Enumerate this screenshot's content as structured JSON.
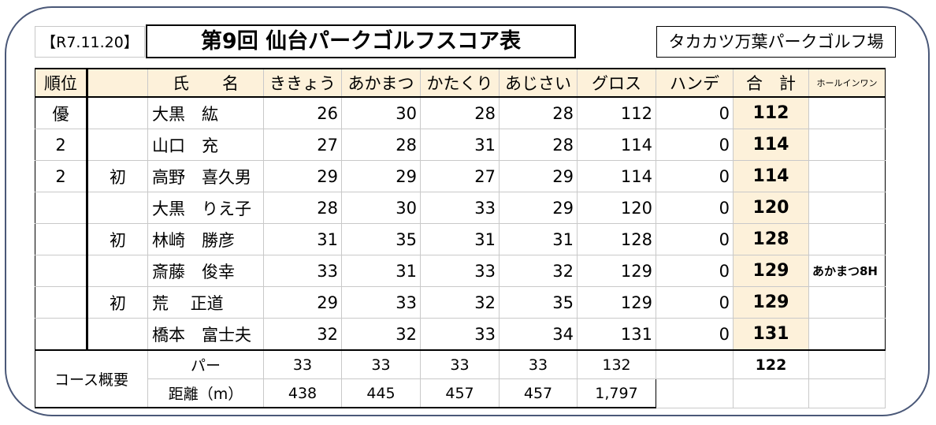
{
  "header": {
    "date": "【R7.11.20】",
    "title": "第9回 仙台パークゴルフスコア表",
    "venue": "タカカツ万葉パークゴルフ場"
  },
  "columns": {
    "rank": "順位",
    "mark": "",
    "name": "氏　　名",
    "courses": [
      "ききょう",
      "あかまつ",
      "かたくり",
      "あじさい"
    ],
    "gross": "グロス",
    "handicap": "ハンデ",
    "total": "合　計",
    "hole_in_one": "ホールインワン"
  },
  "rows": [
    {
      "rank": "優",
      "mark": "",
      "name": "大黒　紘",
      "scores": [
        "26",
        "30",
        "28",
        "28"
      ],
      "gross": "112",
      "handicap": "0",
      "total": "112",
      "hio": ""
    },
    {
      "rank": "2",
      "mark": "",
      "name": "山口　充",
      "scores": [
        "27",
        "28",
        "31",
        "28"
      ],
      "gross": "114",
      "handicap": "0",
      "total": "114",
      "hio": ""
    },
    {
      "rank": "2",
      "mark": "初",
      "name": "高野　喜久男",
      "scores": [
        "29",
        "29",
        "27",
        "29"
      ],
      "gross": "114",
      "handicap": "0",
      "total": "114",
      "hio": ""
    },
    {
      "rank": "",
      "mark": "",
      "name": "大黒　りえ子",
      "scores": [
        "28",
        "30",
        "33",
        "29"
      ],
      "gross": "120",
      "handicap": "0",
      "total": "120",
      "hio": ""
    },
    {
      "rank": "",
      "mark": "初",
      "name": "林崎　勝彦",
      "scores": [
        "31",
        "35",
        "31",
        "31"
      ],
      "gross": "128",
      "handicap": "0",
      "total": "128",
      "hio": ""
    },
    {
      "rank": "",
      "mark": "",
      "name": "斎藤　俊幸",
      "scores": [
        "33",
        "31",
        "33",
        "32"
      ],
      "gross": "129",
      "handicap": "0",
      "total": "129",
      "hio": "あかまつ8H"
    },
    {
      "rank": "",
      "mark": "初",
      "name": " 荒　 正道",
      "scores": [
        "29",
        "33",
        "32",
        "35"
      ],
      "gross": "129",
      "handicap": "0",
      "total": "129",
      "hio": ""
    },
    {
      "rank": "",
      "mark": "",
      "name": "橋本　富士夫",
      "scores": [
        "32",
        "32",
        "33",
        "34"
      ],
      "gross": "131",
      "handicap": "0",
      "total": "131",
      "hio": ""
    }
  ],
  "course_summary": {
    "label": "コース概要",
    "par_label": "パー",
    "par": [
      "33",
      "33",
      "33",
      "33"
    ],
    "par_total": "132",
    "par_grand_total": "122",
    "distance_label": "距離（m）",
    "distance": [
      "438",
      "445",
      "457",
      "457"
    ],
    "distance_total": "1,797"
  }
}
